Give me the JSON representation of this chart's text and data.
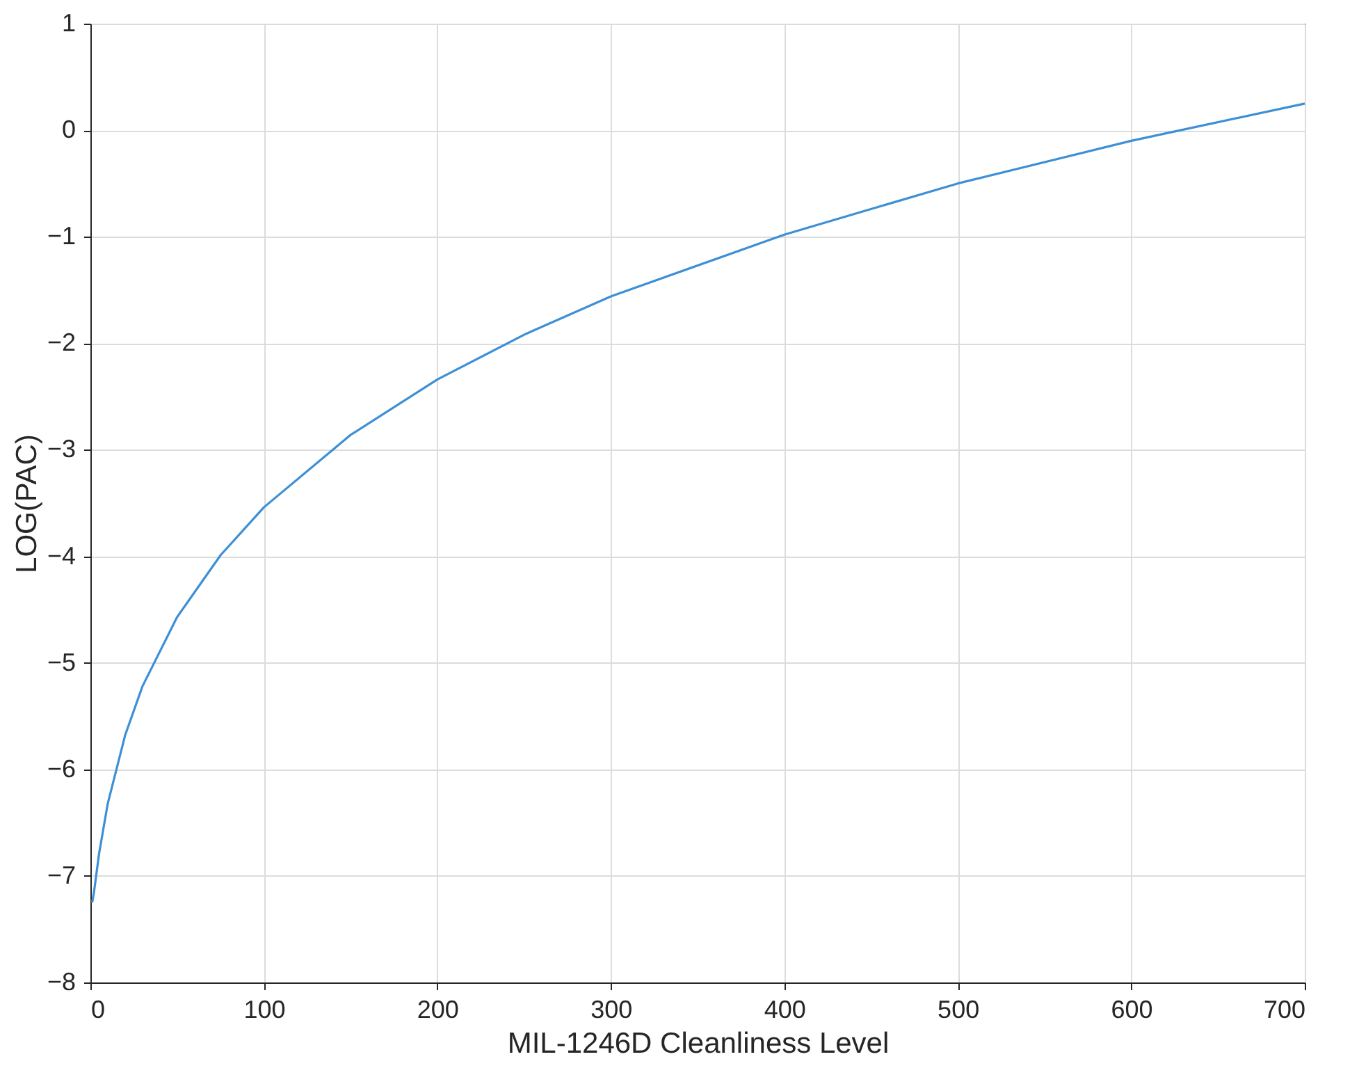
{
  "chart_data": {
    "type": "line",
    "xlabel": "MIL-1246D Cleanliness Level",
    "ylabel": "LOG(PAC)",
    "x": [
      1,
      2,
      5,
      10,
      20,
      30,
      50,
      75,
      100,
      150,
      200,
      250,
      300,
      400,
      500,
      600,
      700
    ],
    "series": [
      {
        "color": "#3d8fd6",
        "values": [
          -7.25,
          -7.16,
          -6.79,
          -6.32,
          -5.68,
          -5.22,
          -4.57,
          -3.99,
          -3.54,
          -2.86,
          -2.34,
          -1.92,
          -1.56,
          -0.98,
          -0.5,
          -0.1,
          0.25
        ]
      }
    ],
    "xlim": [
      0,
      700
    ],
    "xticks": [
      0,
      100,
      200,
      300,
      400,
      500,
      600,
      700
    ],
    "ylim": [
      -8,
      1
    ],
    "yticks": [
      -8,
      -7,
      -6,
      -5,
      -4,
      -3,
      -2,
      -1,
      0,
      1
    ],
    "grid": true,
    "marker": "none",
    "line_style": "solid"
  }
}
